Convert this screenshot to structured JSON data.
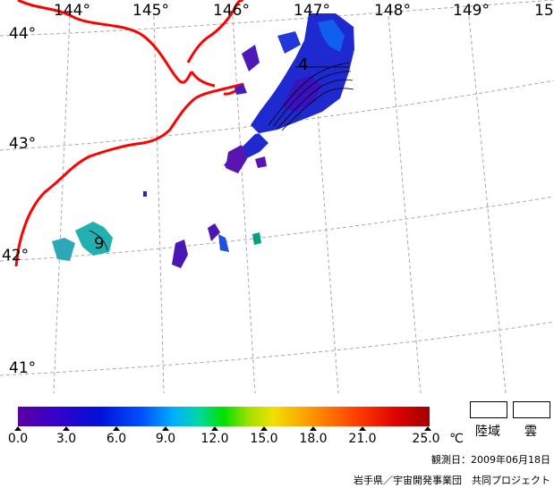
{
  "map": {
    "longitude_labels": [
      "144°",
      "145°",
      "146°",
      "147°",
      "148°",
      "149°",
      "15"
    ],
    "latitude_labels": [
      "44°",
      "43°",
      "42°",
      "41°"
    ],
    "contour_labels": [
      "4",
      "9"
    ],
    "colors": {
      "coastline": "#ff0000",
      "grid": "#aaaaaa",
      "cold": "#5a00a0",
      "mid": "#00e000",
      "hot": "#a00000"
    }
  },
  "colorbar": {
    "ticks": [
      "0.0",
      "3.0",
      "6.0",
      "9.0",
      "12.0",
      "15.0",
      "18.0",
      "21.0",
      "25.0"
    ],
    "unit": "℃"
  },
  "legend": {
    "land_label": "陸域",
    "cloud_label": "雲"
  },
  "footer": {
    "date": "観測日：2009年06月18日",
    "credit": "岩手県／宇宙開発事業団　共同プロジェクト"
  }
}
